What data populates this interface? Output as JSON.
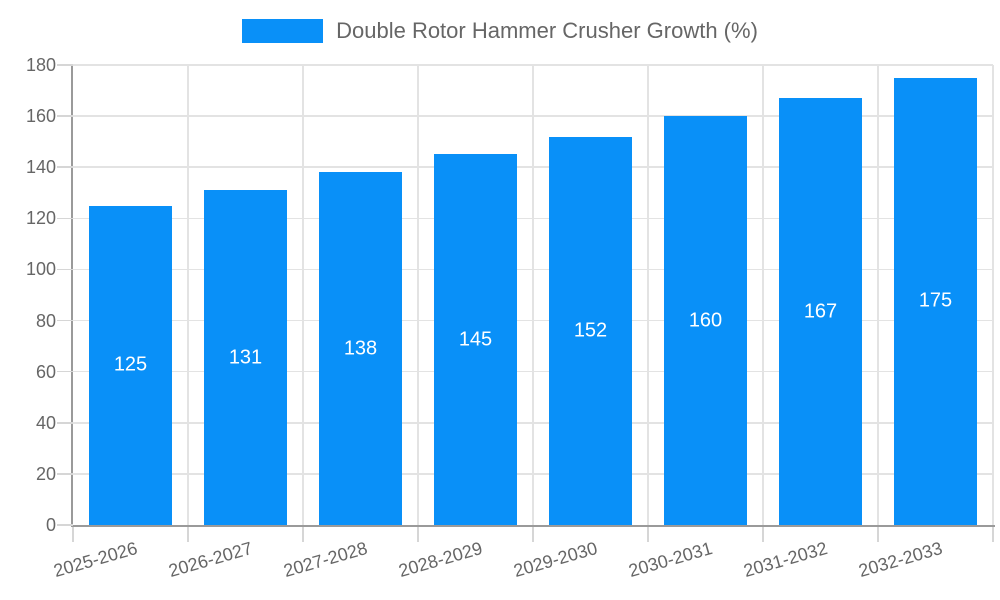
{
  "legend": {
    "label": "Double Rotor Hammer Crusher Growth (%)"
  },
  "chart_data": {
    "type": "bar",
    "title": "Double Rotor Hammer Crusher Growth (%)",
    "categories": [
      "2025-2026",
      "2026-2027",
      "2027-2028",
      "2028-2029",
      "2029-2030",
      "2030-2031",
      "2031-2032",
      "2032-2033"
    ],
    "values": [
      125,
      131,
      138,
      145,
      152,
      160,
      167,
      175
    ],
    "xlabel": "",
    "ylabel": "",
    "ylim": [
      0,
      180
    ],
    "ytick_step": 20,
    "yticks": [
      0,
      20,
      40,
      60,
      80,
      100,
      120,
      140,
      160,
      180
    ],
    "grid": true,
    "legend_position": "top",
    "bar_color": "#0990f8",
    "value_label_color": "#ffffff",
    "axis_text_color": "#666666",
    "gridline_color": "#e3e3e3",
    "axis_line_color": "#9a9a9a"
  }
}
